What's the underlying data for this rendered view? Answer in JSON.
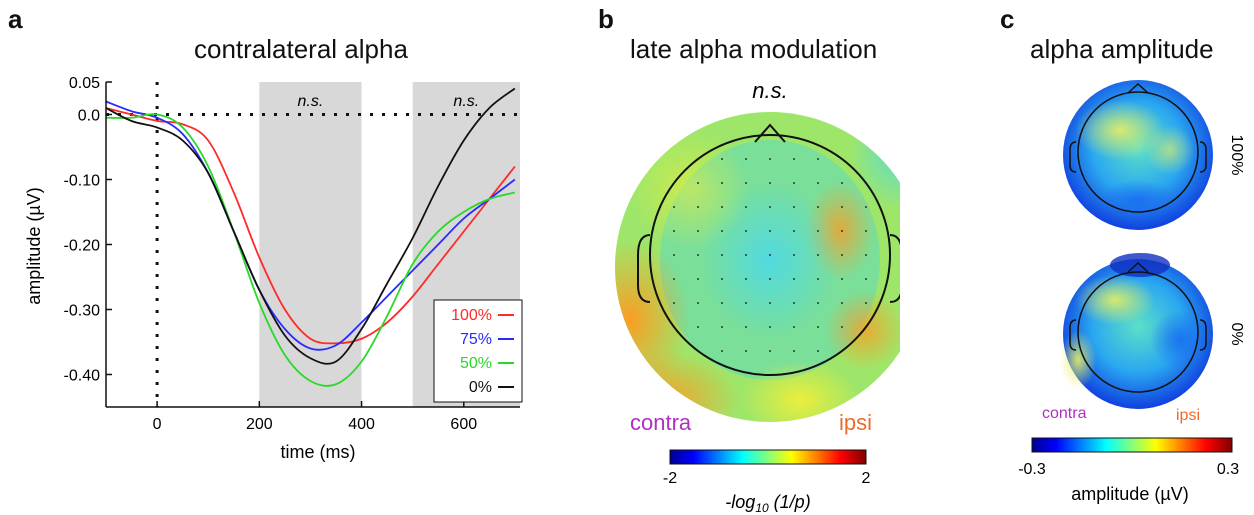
{
  "panels": {
    "a": {
      "letter": "a",
      "title": "contralateral alpha",
      "xlabel": "time (ms)",
      "ylabel": "amplitude (µV)",
      "ns_labels": [
        "n.s.",
        "n.s."
      ]
    },
    "b": {
      "letter": "b",
      "title": "late alpha modulation",
      "ns_label": "n.s.",
      "contra_label": "contra",
      "ipsi_label": "ipsi",
      "colorbar": {
        "min_label": "-2",
        "max_label": "2",
        "label_prefix": "-log",
        "label_sub": "10",
        "label_suffix": " (1/p)"
      }
    },
    "c": {
      "letter": "c",
      "title": "alpha amplitude",
      "map_labels": [
        "100%",
        "0%"
      ],
      "contra_label": "contra",
      "ipsi_label": "ipsi",
      "colorbar": {
        "min_label": "-0.3",
        "max_label": "0.3",
        "label": "amplitude (µV)"
      }
    }
  },
  "colors": {
    "contra": "#b030c0",
    "ipsi": "#f06a2a",
    "shade": "#d8d8d8"
  },
  "chart_data": {
    "type": "line",
    "title": "contralateral alpha",
    "xlabel": "time (ms)",
    "ylabel": "amplitude (µV)",
    "xlim": [
      -100,
      710
    ],
    "ylim": [
      -0.45,
      0.05
    ],
    "xticks": [
      0,
      200,
      400,
      600
    ],
    "yticks": [
      0.05,
      0.0,
      -0.1,
      -0.2,
      -0.3,
      -0.4
    ],
    "ytick_labels": [
      "0.05",
      "0.0",
      "-0.10",
      "-0.20",
      "-0.30",
      "-0.40"
    ],
    "shaded_windows": [
      [
        200,
        400
      ],
      [
        500,
        710
      ]
    ],
    "grid": false,
    "legend_position": "bottom-right",
    "series": [
      {
        "name": "100%",
        "color": "#ff2a2a",
        "x": [
          -100,
          -50,
          0,
          50,
          100,
          150,
          200,
          250,
          300,
          350,
          400,
          450,
          500,
          550,
          600,
          650,
          700
        ],
        "y": [
          0.01,
          0.0,
          -0.01,
          -0.015,
          -0.04,
          -0.12,
          -0.22,
          -0.3,
          -0.345,
          -0.352,
          -0.345,
          -0.32,
          -0.28,
          -0.23,
          -0.18,
          -0.13,
          -0.08
        ]
      },
      {
        "name": "75%",
        "color": "#2a2aff",
        "x": [
          -100,
          -50,
          0,
          50,
          100,
          150,
          200,
          250,
          300,
          350,
          400,
          450,
          500,
          550,
          600,
          650,
          700
        ],
        "y": [
          0.02,
          0.005,
          -0.005,
          -0.03,
          -0.09,
          -0.18,
          -0.27,
          -0.33,
          -0.36,
          -0.355,
          -0.32,
          -0.28,
          -0.24,
          -0.2,
          -0.16,
          -0.13,
          -0.1
        ]
      },
      {
        "name": "50%",
        "color": "#2ad82a",
        "x": [
          -100,
          -50,
          0,
          50,
          100,
          150,
          200,
          250,
          300,
          350,
          400,
          450,
          500,
          550,
          600,
          650,
          700
        ],
        "y": [
          -0.005,
          -0.005,
          0.0,
          -0.02,
          -0.08,
          -0.18,
          -0.29,
          -0.37,
          -0.41,
          -0.415,
          -0.38,
          -0.31,
          -0.23,
          -0.18,
          -0.15,
          -0.13,
          -0.12
        ]
      },
      {
        "name": "0%",
        "color": "#111111",
        "x": [
          -100,
          -50,
          0,
          50,
          100,
          150,
          200,
          250,
          300,
          350,
          400,
          450,
          500,
          550,
          600,
          650,
          700
        ],
        "y": [
          0.01,
          -0.01,
          -0.02,
          -0.04,
          -0.09,
          -0.18,
          -0.27,
          -0.34,
          -0.375,
          -0.38,
          -0.33,
          -0.26,
          -0.19,
          -0.11,
          -0.04,
          0.01,
          0.04
        ]
      }
    ]
  }
}
